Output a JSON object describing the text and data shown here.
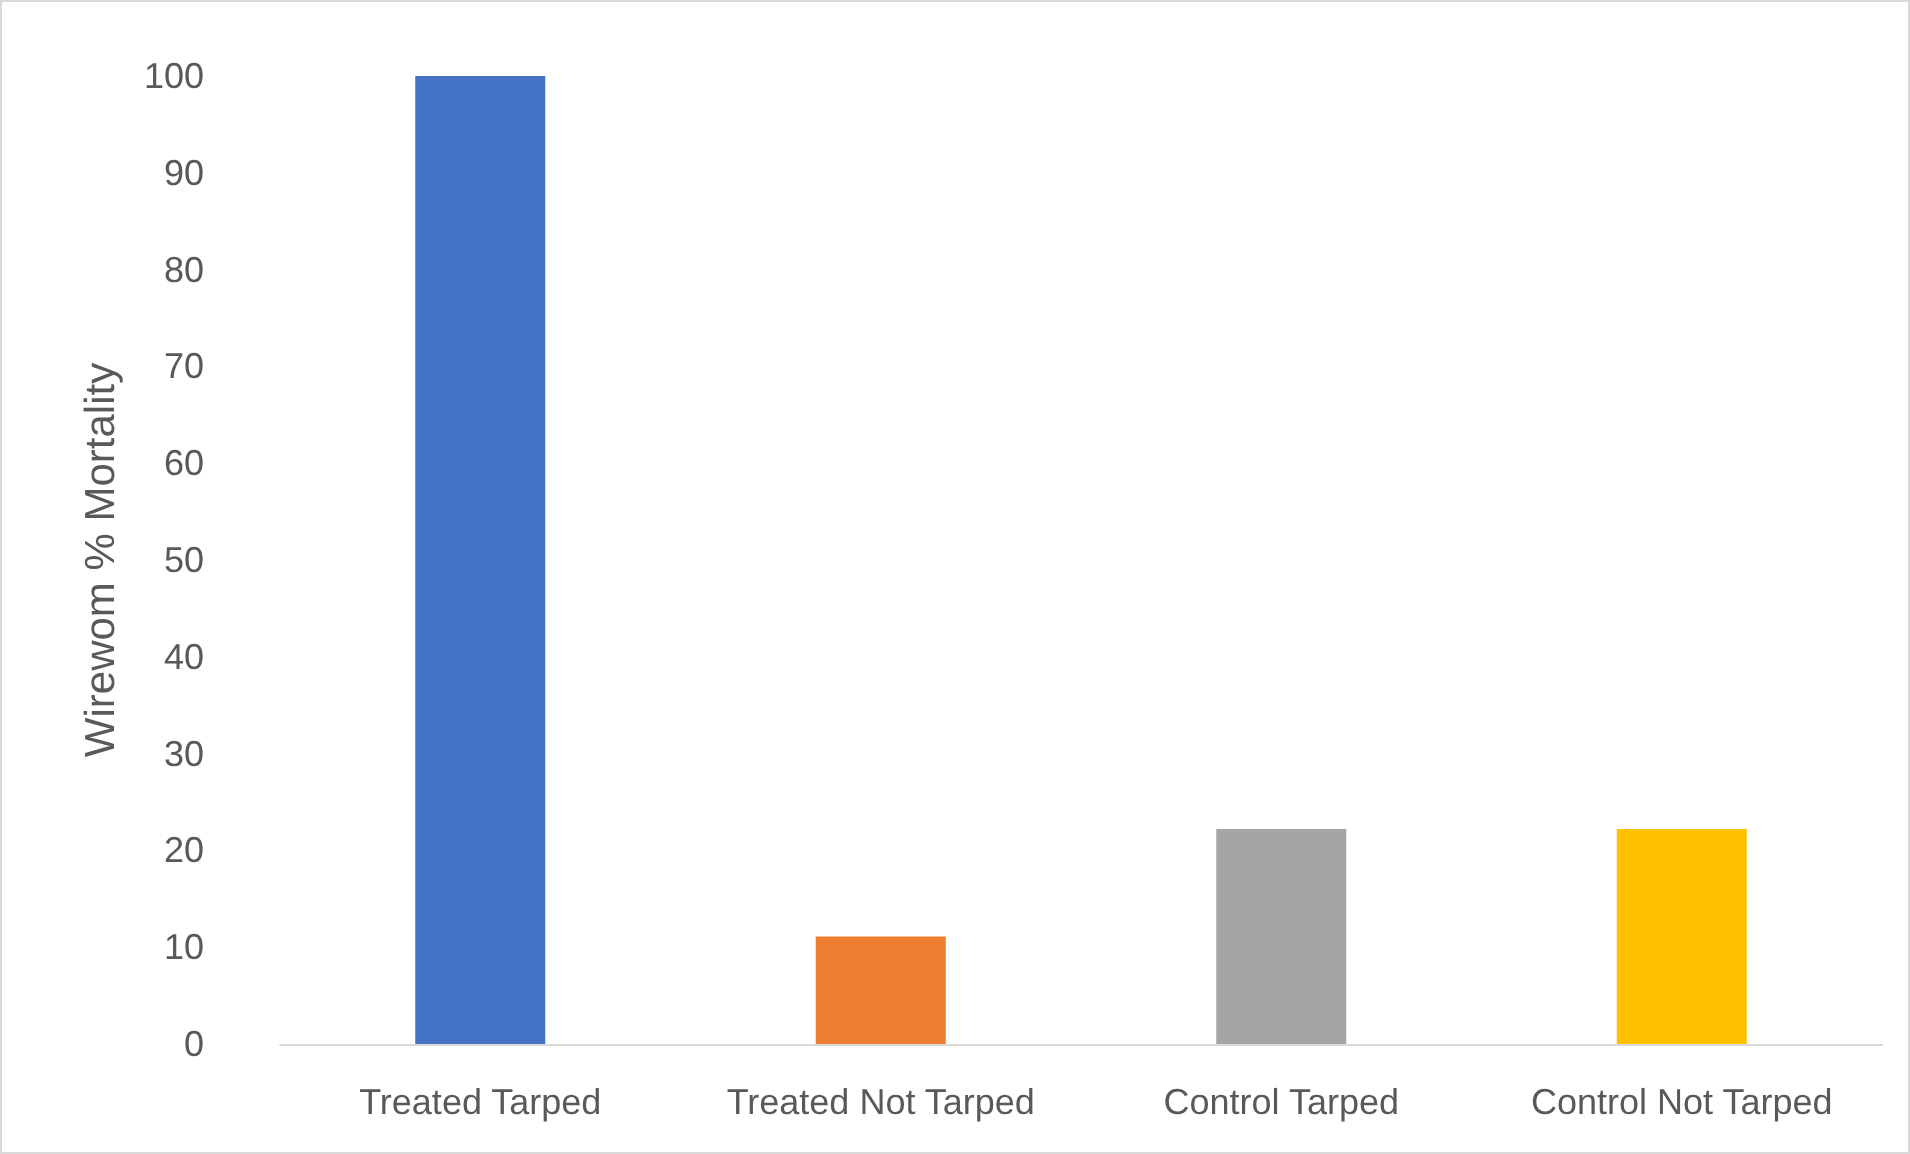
{
  "chart_data": {
    "type": "bar",
    "ylabel": "Wirewom % Mortality",
    "categories": [
      "Treated Tarped",
      "Treated Not Tarped",
      "Control Tarped",
      "Control Not Tarped"
    ],
    "values": [
      100,
      11.1,
      22.2,
      22.2
    ],
    "colors": [
      "#4472c4",
      "#ed7d31",
      "#a5a5a5",
      "#ffc000"
    ],
    "ylim": [
      0,
      100
    ],
    "yticks": [
      0,
      10,
      20,
      30,
      40,
      50,
      60,
      70,
      80,
      90,
      100
    ]
  }
}
